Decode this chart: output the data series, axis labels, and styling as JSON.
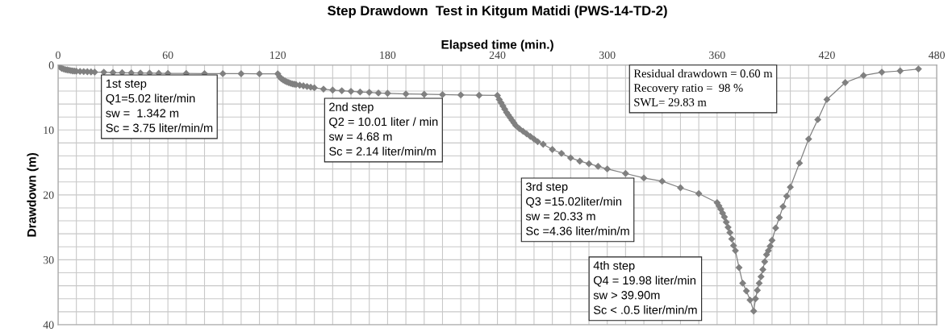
{
  "chart_data": {
    "type": "line",
    "title": "Step Drawdown  Test in Kitgum Matidi (PWS-14-TD-2)",
    "xlabel": "Elapsed time (min.)",
    "ylabel": "Drawdown (m)",
    "x": [
      0,
      1,
      2,
      3,
      4,
      5,
      6,
      7,
      8,
      9,
      10,
      12,
      14,
      16,
      18,
      20,
      25,
      30,
      35,
      40,
      45,
      50,
      55,
      60,
      70,
      80,
      90,
      100,
      110,
      120,
      121,
      122,
      123,
      124,
      125,
      126,
      127,
      128,
      129,
      130,
      132,
      134,
      136,
      138,
      140,
      145,
      150,
      155,
      160,
      165,
      170,
      175,
      180,
      190,
      200,
      210,
      220,
      230,
      240,
      241,
      242,
      243,
      244,
      245,
      246,
      247,
      248,
      249,
      250,
      252,
      254,
      256,
      258,
      260,
      262,
      265,
      270,
      275,
      280,
      285,
      290,
      295,
      300,
      310,
      320,
      330,
      340,
      350,
      360,
      361,
      362,
      363,
      364,
      365,
      366,
      367,
      368,
      369,
      370,
      372,
      374,
      376,
      378,
      380,
      381,
      382,
      383,
      384,
      385,
      386,
      387,
      388,
      389,
      390,
      392,
      394,
      396,
      398,
      400,
      405,
      410,
      415,
      420,
      430,
      440,
      450,
      460,
      470
    ],
    "series": [
      {
        "color": "#808080",
        "values": [
          0,
          0.3,
          0.5,
          0.6,
          0.7,
          0.75,
          0.8,
          0.85,
          0.9,
          0.92,
          0.95,
          0.98,
          1.0,
          1.02,
          1.05,
          1.08,
          1.1,
          1.15,
          1.18,
          1.2,
          1.22,
          1.24,
          1.26,
          1.28,
          1.3,
          1.31,
          1.32,
          1.33,
          1.34,
          1.34,
          1.8,
          2.1,
          2.3,
          2.45,
          2.6,
          2.7,
          2.8,
          2.9,
          2.95,
          3.0,
          3.1,
          3.2,
          3.3,
          3.4,
          3.5,
          3.7,
          3.85,
          3.95,
          4.05,
          4.15,
          4.2,
          4.3,
          4.35,
          4.45,
          4.5,
          4.55,
          4.6,
          4.65,
          4.68,
          5.3,
          5.8,
          6.3,
          6.8,
          7.3,
          7.7,
          8.1,
          8.5,
          8.9,
          9.3,
          9.8,
          10.2,
          10.6,
          11.0,
          11.4,
          11.8,
          12.2,
          13.0,
          13.6,
          14.3,
          14.8,
          15.2,
          15.6,
          16.0,
          16.7,
          17.4,
          17.9,
          18.9,
          19.8,
          21.2,
          21.7,
          22.2,
          22.8,
          23.4,
          24.2,
          25.0,
          25.8,
          26.8,
          27.8,
          28.6,
          31.2,
          33.6,
          34.8,
          36.2,
          37.9,
          36.0,
          34.7,
          33.6,
          32.6,
          31.5,
          30.3,
          29.2,
          28.6,
          27.9,
          27.0,
          25.1,
          23.5,
          21.8,
          20.2,
          18.8,
          15.1,
          11.4,
          8.4,
          5.3,
          2.7,
          1.6,
          1.1,
          0.9,
          0.6
        ]
      }
    ],
    "xlim": [
      0,
      480
    ],
    "xticks": [
      0,
      60,
      120,
      180,
      240,
      300,
      360,
      420,
      480
    ],
    "ylim": [
      40,
      0
    ],
    "yticks": [
      0,
      10,
      20,
      30,
      40
    ],
    "grid": true,
    "marker": "diamond",
    "line_style": "solid",
    "annotations": [
      "1st step\nQ1=5.02 liter/min\nsw =  1.342 m\nSc = 3.75 liter/min/m",
      "2nd step\nQ2 = 10.01 liter / min\nsw = 4.68 m\nSc = 2.14 liter/min/m",
      "3rd step\nQ3 =15.02liter/min\nsw = 20.33 m\nSc =4.36 liter/min/m",
      "4th step\nQ4 = 19.98 liter/min\nsw > 39.90m\nSc < .0.5 liter/min/m",
      "Residual drawdown = 0.60 m\nRecovery ratio =  98 %\nSWL= 29.83 m"
    ]
  }
}
